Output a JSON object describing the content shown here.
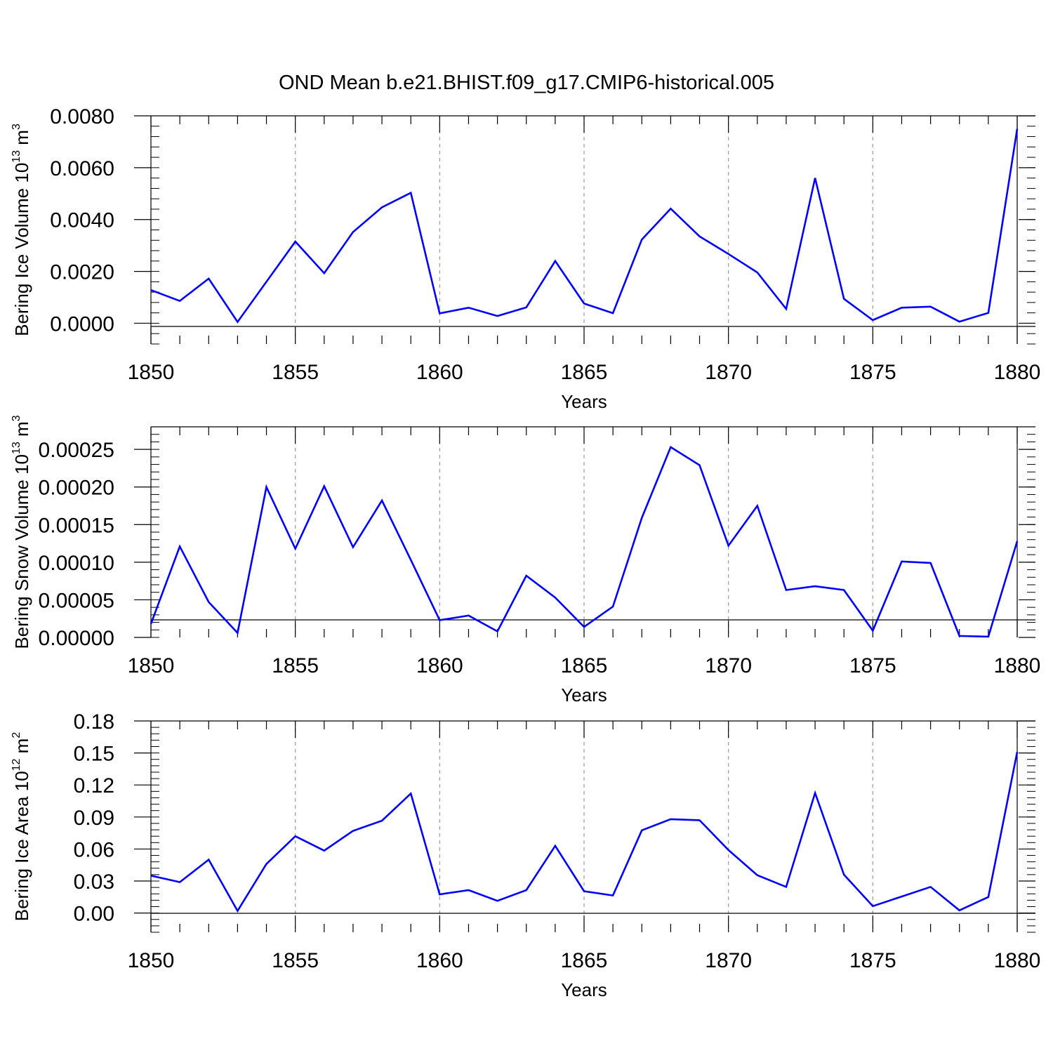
{
  "title": "OND Mean b.e21.BHIST.f09_g17.CMIP6-historical.005",
  "colors": {
    "line": "#0000ff",
    "axis": "#000000",
    "grid": "#999999"
  },
  "chart_data": [
    {
      "type": "line",
      "title": "OND Mean b.e21.BHIST.f09_g17.CMIP6-historical.005",
      "xlabel": "Years",
      "ylabel": {
        "text": "Bering Ice Volume 10",
        "sup": "13",
        "unit": "m",
        "unit_sup": "3"
      },
      "xlim": [
        1850,
        1880
      ],
      "ylim": [
        -0.0008,
        0.008
      ],
      "x_ticks": [
        "1850",
        "1855",
        "1860",
        "1865",
        "1870",
        "1875",
        "1880"
      ],
      "y_ticks": [
        "0.0000",
        "0.0020",
        "0.0040",
        "0.0060",
        "0.0080"
      ],
      "grid": "vertical dashed at major x ticks",
      "x": [
        1850,
        1851,
        1852,
        1853,
        1854,
        1855,
        1856,
        1857,
        1858,
        1859,
        1860,
        1861,
        1862,
        1863,
        1864,
        1865,
        1866,
        1867,
        1868,
        1869,
        1870,
        1871,
        1872,
        1873,
        1874,
        1875,
        1876,
        1877,
        1878,
        1879,
        1880
      ],
      "values": [
        0.00128,
        0.00086,
        0.00172,
        5e-05,
        0.0016,
        0.00315,
        0.00193,
        0.00352,
        0.00447,
        0.00503,
        0.00038,
        0.0006,
        0.00028,
        0.00061,
        0.0024,
        0.00076,
        0.00039,
        0.00323,
        0.00442,
        0.00335,
        0.00267,
        0.00196,
        0.00055,
        0.0056,
        0.00094,
        0.00012,
        0.0006,
        0.00064,
        6e-05,
        0.0004,
        0.0075
      ]
    },
    {
      "type": "line",
      "xlabel": "Years",
      "ylabel": {
        "text": "Bering Snow Volume 10",
        "sup": "13",
        "unit": "m",
        "unit_sup": "3"
      },
      "xlim": [
        1850,
        1880
      ],
      "ylim": [
        0,
        0.00028
      ],
      "x_ticks": [
        "1850",
        "1855",
        "1860",
        "1865",
        "1870",
        "1875",
        "1880"
      ],
      "y_ticks": [
        "0.00000",
        "0.00005",
        "0.00010",
        "0.00015",
        "0.00020",
        "0.00025"
      ],
      "grid": "vertical dashed at major x ticks",
      "x": [
        1850,
        1851,
        1852,
        1853,
        1854,
        1855,
        1856,
        1857,
        1858,
        1859,
        1860,
        1861,
        1862,
        1863,
        1864,
        1865,
        1866,
        1867,
        1868,
        1869,
        1870,
        1871,
        1872,
        1873,
        1874,
        1875,
        1876,
        1877,
        1878,
        1879,
        1880
      ],
      "values": [
        1.8e-05,
        0.000121,
        4.7e-05,
        6e-06,
        0.0002,
        0.000118,
        0.000201,
        0.00012,
        0.000182,
        0.000103,
        2.3e-05,
        2.9e-05,
        8e-06,
        8.2e-05,
        5.3e-05,
        1.4e-05,
        4.1e-05,
        0.000159,
        0.000253,
        0.000229,
        0.000122,
        0.000175,
        6.3e-05,
        6.8e-05,
        6.3e-05,
        9e-06,
        0.000101,
        9.9e-05,
        2e-06,
        1e-06,
        0.000128
      ]
    },
    {
      "type": "line",
      "xlabel": "Years",
      "ylabel": {
        "text": "Bering Ice Area 10",
        "sup": "12",
        "unit": "m",
        "unit_sup": "2"
      },
      "xlim": [
        1850,
        1880
      ],
      "ylim": [
        -0.018,
        0.18
      ],
      "x_ticks": [
        "1850",
        "1855",
        "1860",
        "1865",
        "1870",
        "1875",
        "1880"
      ],
      "y_ticks": [
        "0.00",
        "0.03",
        "0.06",
        "0.09",
        "0.12",
        "0.15",
        "0.18"
      ],
      "grid": "vertical dashed at major x ticks",
      "x": [
        1850,
        1851,
        1852,
        1853,
        1854,
        1855,
        1856,
        1857,
        1858,
        1859,
        1860,
        1861,
        1862,
        1863,
        1864,
        1865,
        1866,
        1867,
        1868,
        1869,
        1870,
        1871,
        1872,
        1873,
        1874,
        1875,
        1876,
        1877,
        1878,
        1879,
        1880
      ],
      "values": [
        0.035,
        0.029,
        0.05,
        0.002,
        0.046,
        0.072,
        0.0585,
        0.077,
        0.0865,
        0.112,
        0.0175,
        0.0215,
        0.0115,
        0.0215,
        0.063,
        0.0205,
        0.0165,
        0.0775,
        0.088,
        0.087,
        0.059,
        0.0355,
        0.0245,
        0.1125,
        0.036,
        0.0065,
        0.0155,
        0.0245,
        0.0025,
        0.015,
        0.151
      ]
    }
  ]
}
